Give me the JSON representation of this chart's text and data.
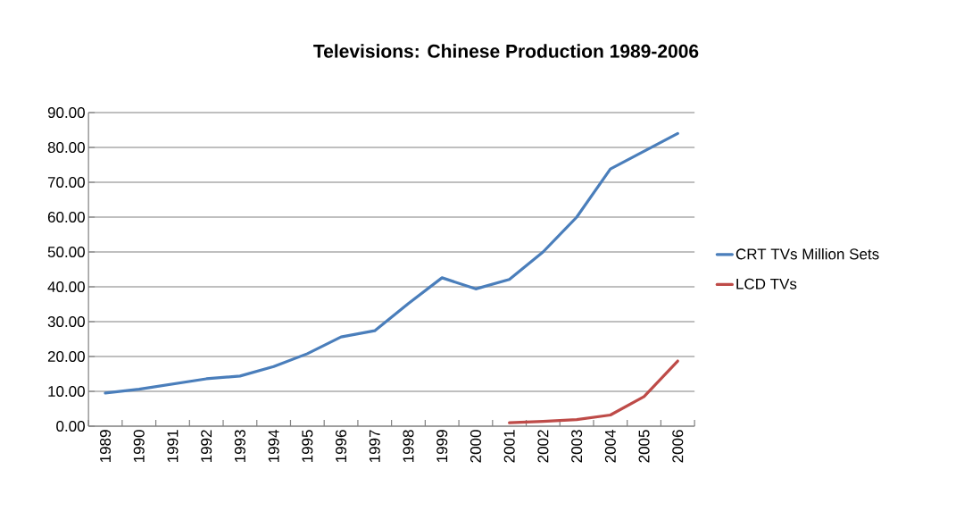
{
  "chart_data": {
    "type": "line",
    "title": "Televisions: Chinese Production 1989-2006",
    "categories": [
      "1989",
      "1990",
      "1991",
      "1992",
      "1993",
      "1994",
      "1995",
      "1996",
      "1997",
      "1998",
      "1999",
      "2000",
      "2001",
      "2002",
      "2003",
      "2004",
      "2005",
      "2006"
    ],
    "series": [
      {
        "name": "CRT TVs Million Sets",
        "color": "#4a7ebb",
        "values": [
          9.5,
          10.6,
          12.1,
          13.6,
          14.4,
          17.1,
          20.8,
          25.6,
          27.4,
          35.2,
          42.6,
          39.4,
          42.1,
          50.0,
          60.0,
          73.8,
          78.9,
          84.0
        ]
      },
      {
        "name": "LCD TVs",
        "color": "#be4b48",
        "values": [
          null,
          null,
          null,
          null,
          null,
          null,
          null,
          null,
          null,
          null,
          null,
          null,
          1.0,
          1.4,
          1.9,
          3.2,
          8.5,
          18.7
        ]
      }
    ],
    "ylim": [
      0,
      90
    ],
    "yticks": [
      {
        "value": 0,
        "label": "0.00"
      },
      {
        "value": 10,
        "label": "10.00"
      },
      {
        "value": 20,
        "label": "20.00"
      },
      {
        "value": 30,
        "label": "30.00"
      },
      {
        "value": 40,
        "label": "40.00"
      },
      {
        "value": 50,
        "label": "50.00"
      },
      {
        "value": 60,
        "label": "60.00"
      },
      {
        "value": 70,
        "label": "70.00"
      },
      {
        "value": 80,
        "label": "80.00"
      },
      {
        "value": 90,
        "label": "90.00"
      }
    ],
    "grid": "y",
    "legend": "right",
    "marker": "none",
    "line_style": "solid"
  }
}
